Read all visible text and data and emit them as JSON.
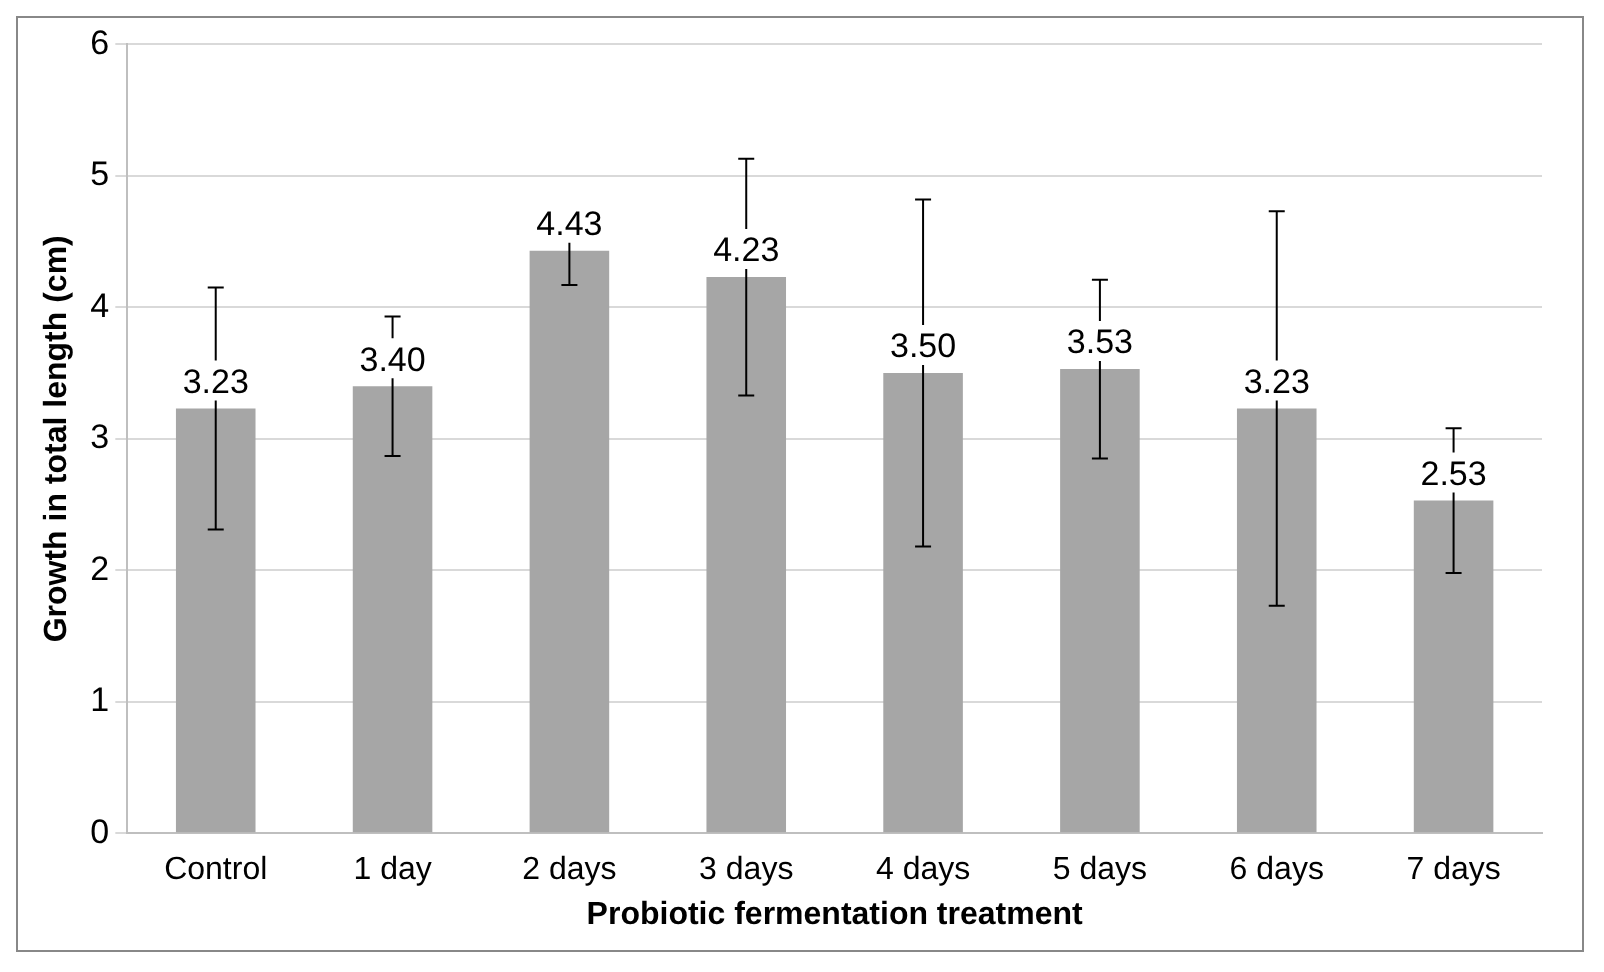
{
  "chart_data": {
    "type": "bar",
    "xlabel": "Probiotic fermentation treatment",
    "ylabel": "Growth in total length (cm)",
    "categories": [
      "Control",
      "1 day",
      "2 days",
      "3 days",
      "4 days",
      "5 days",
      "6 days",
      "7 days"
    ],
    "values": [
      3.23,
      3.4,
      4.43,
      4.23,
      3.5,
      3.53,
      3.23,
      2.53
    ],
    "errors": [
      0.92,
      0.53,
      0.26,
      0.9,
      1.32,
      0.68,
      1.5,
      0.55
    ],
    "value_labels": [
      "3.23",
      "3.40",
      "4.43",
      "4.23",
      "3.50",
      "3.53",
      "3.23",
      "2.53"
    ],
    "color": "#a6a6a6",
    "ylim": [
      0,
      6
    ],
    "yticks": [
      0,
      1,
      2,
      3,
      4,
      5,
      6
    ],
    "grid": "y",
    "legend": false
  }
}
